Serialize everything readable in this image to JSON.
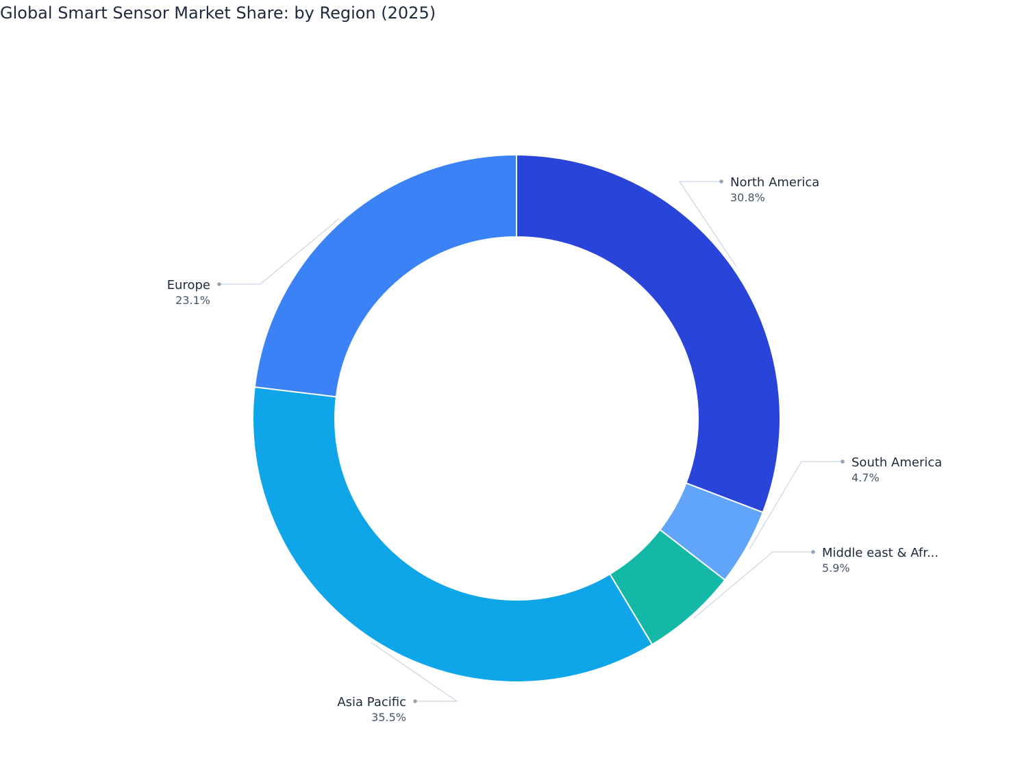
{
  "title": "Global Smart Sensor Market Share: by Region (2025)",
  "chart_data": {
    "type": "pie",
    "variant": "donut",
    "title": "Global Smart Sensor Market Share: by Region (2025)",
    "start_angle_deg": 90,
    "direction": "clockwise",
    "slices": [
      {
        "label": "North America",
        "display_label": "North America",
        "value": 30.8,
        "value_label": "30.8%",
        "color": "#2844d9"
      },
      {
        "label": "South America",
        "display_label": "South America",
        "value": 4.7,
        "value_label": "4.7%",
        "color": "#60a5fa"
      },
      {
        "label": "Middle east & Africa",
        "display_label": "Middle east & Afr...",
        "value": 5.9,
        "value_label": "5.9%",
        "color": "#14b8a6"
      },
      {
        "label": "Asia Pacific",
        "display_label": "Asia Pacific",
        "value": 35.5,
        "value_label": "35.5%",
        "color": "#0ea5e9"
      },
      {
        "label": "Europe",
        "display_label": "Europe",
        "value": 23.1,
        "value_label": "23.1%",
        "color": "#3b82f6"
      }
    ],
    "leader_line_color": "#cbd5e1",
    "dot_color": "#94a3b8"
  }
}
